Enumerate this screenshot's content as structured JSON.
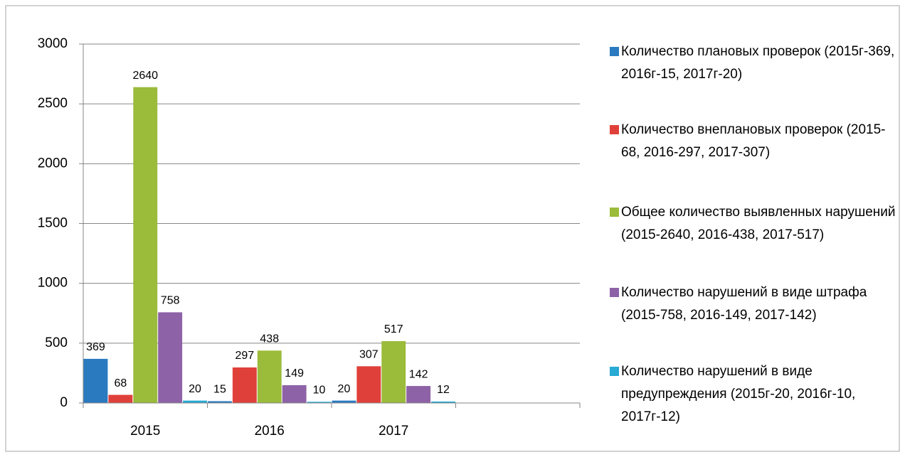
{
  "chart_data": {
    "type": "bar",
    "categories": [
      "2015",
      "2016",
      "2017",
      null
    ],
    "series": [
      {
        "name": "Количество плановых проверок (2015г-369, 2016г-15, 2017г-20)",
        "color": "#2a7ac0",
        "values": [
          369,
          15,
          20,
          null
        ]
      },
      {
        "name": "Количество внеплановых проверок (2015-68, 2016-297, 2017-307)",
        "color": "#e0403a",
        "values": [
          68,
          297,
          307,
          null
        ]
      },
      {
        "name": "Общее количество выявленных нарушений (2015-2640, 2016-438, 2017-517)",
        "color": "#9bbb3a",
        "values": [
          2640,
          438,
          517,
          null
        ]
      },
      {
        "name": "Количество нарушений в виде штрафа (2015-758, 2016-149, 2017-142)",
        "color": "#8e62a7",
        "values": [
          758,
          149,
          142,
          null
        ]
      },
      {
        "name": "Количество нарушений в виде предупреждения (2015г-20, 2016г-10, 2017г-12)",
        "color": "#27aad3",
        "values": [
          20,
          10,
          12,
          null
        ]
      }
    ],
    "ylim": [
      0,
      3000
    ],
    "yticks": [
      0,
      500,
      1000,
      1500,
      2000,
      2500,
      3000
    ],
    "grid": true,
    "legend": "right"
  }
}
